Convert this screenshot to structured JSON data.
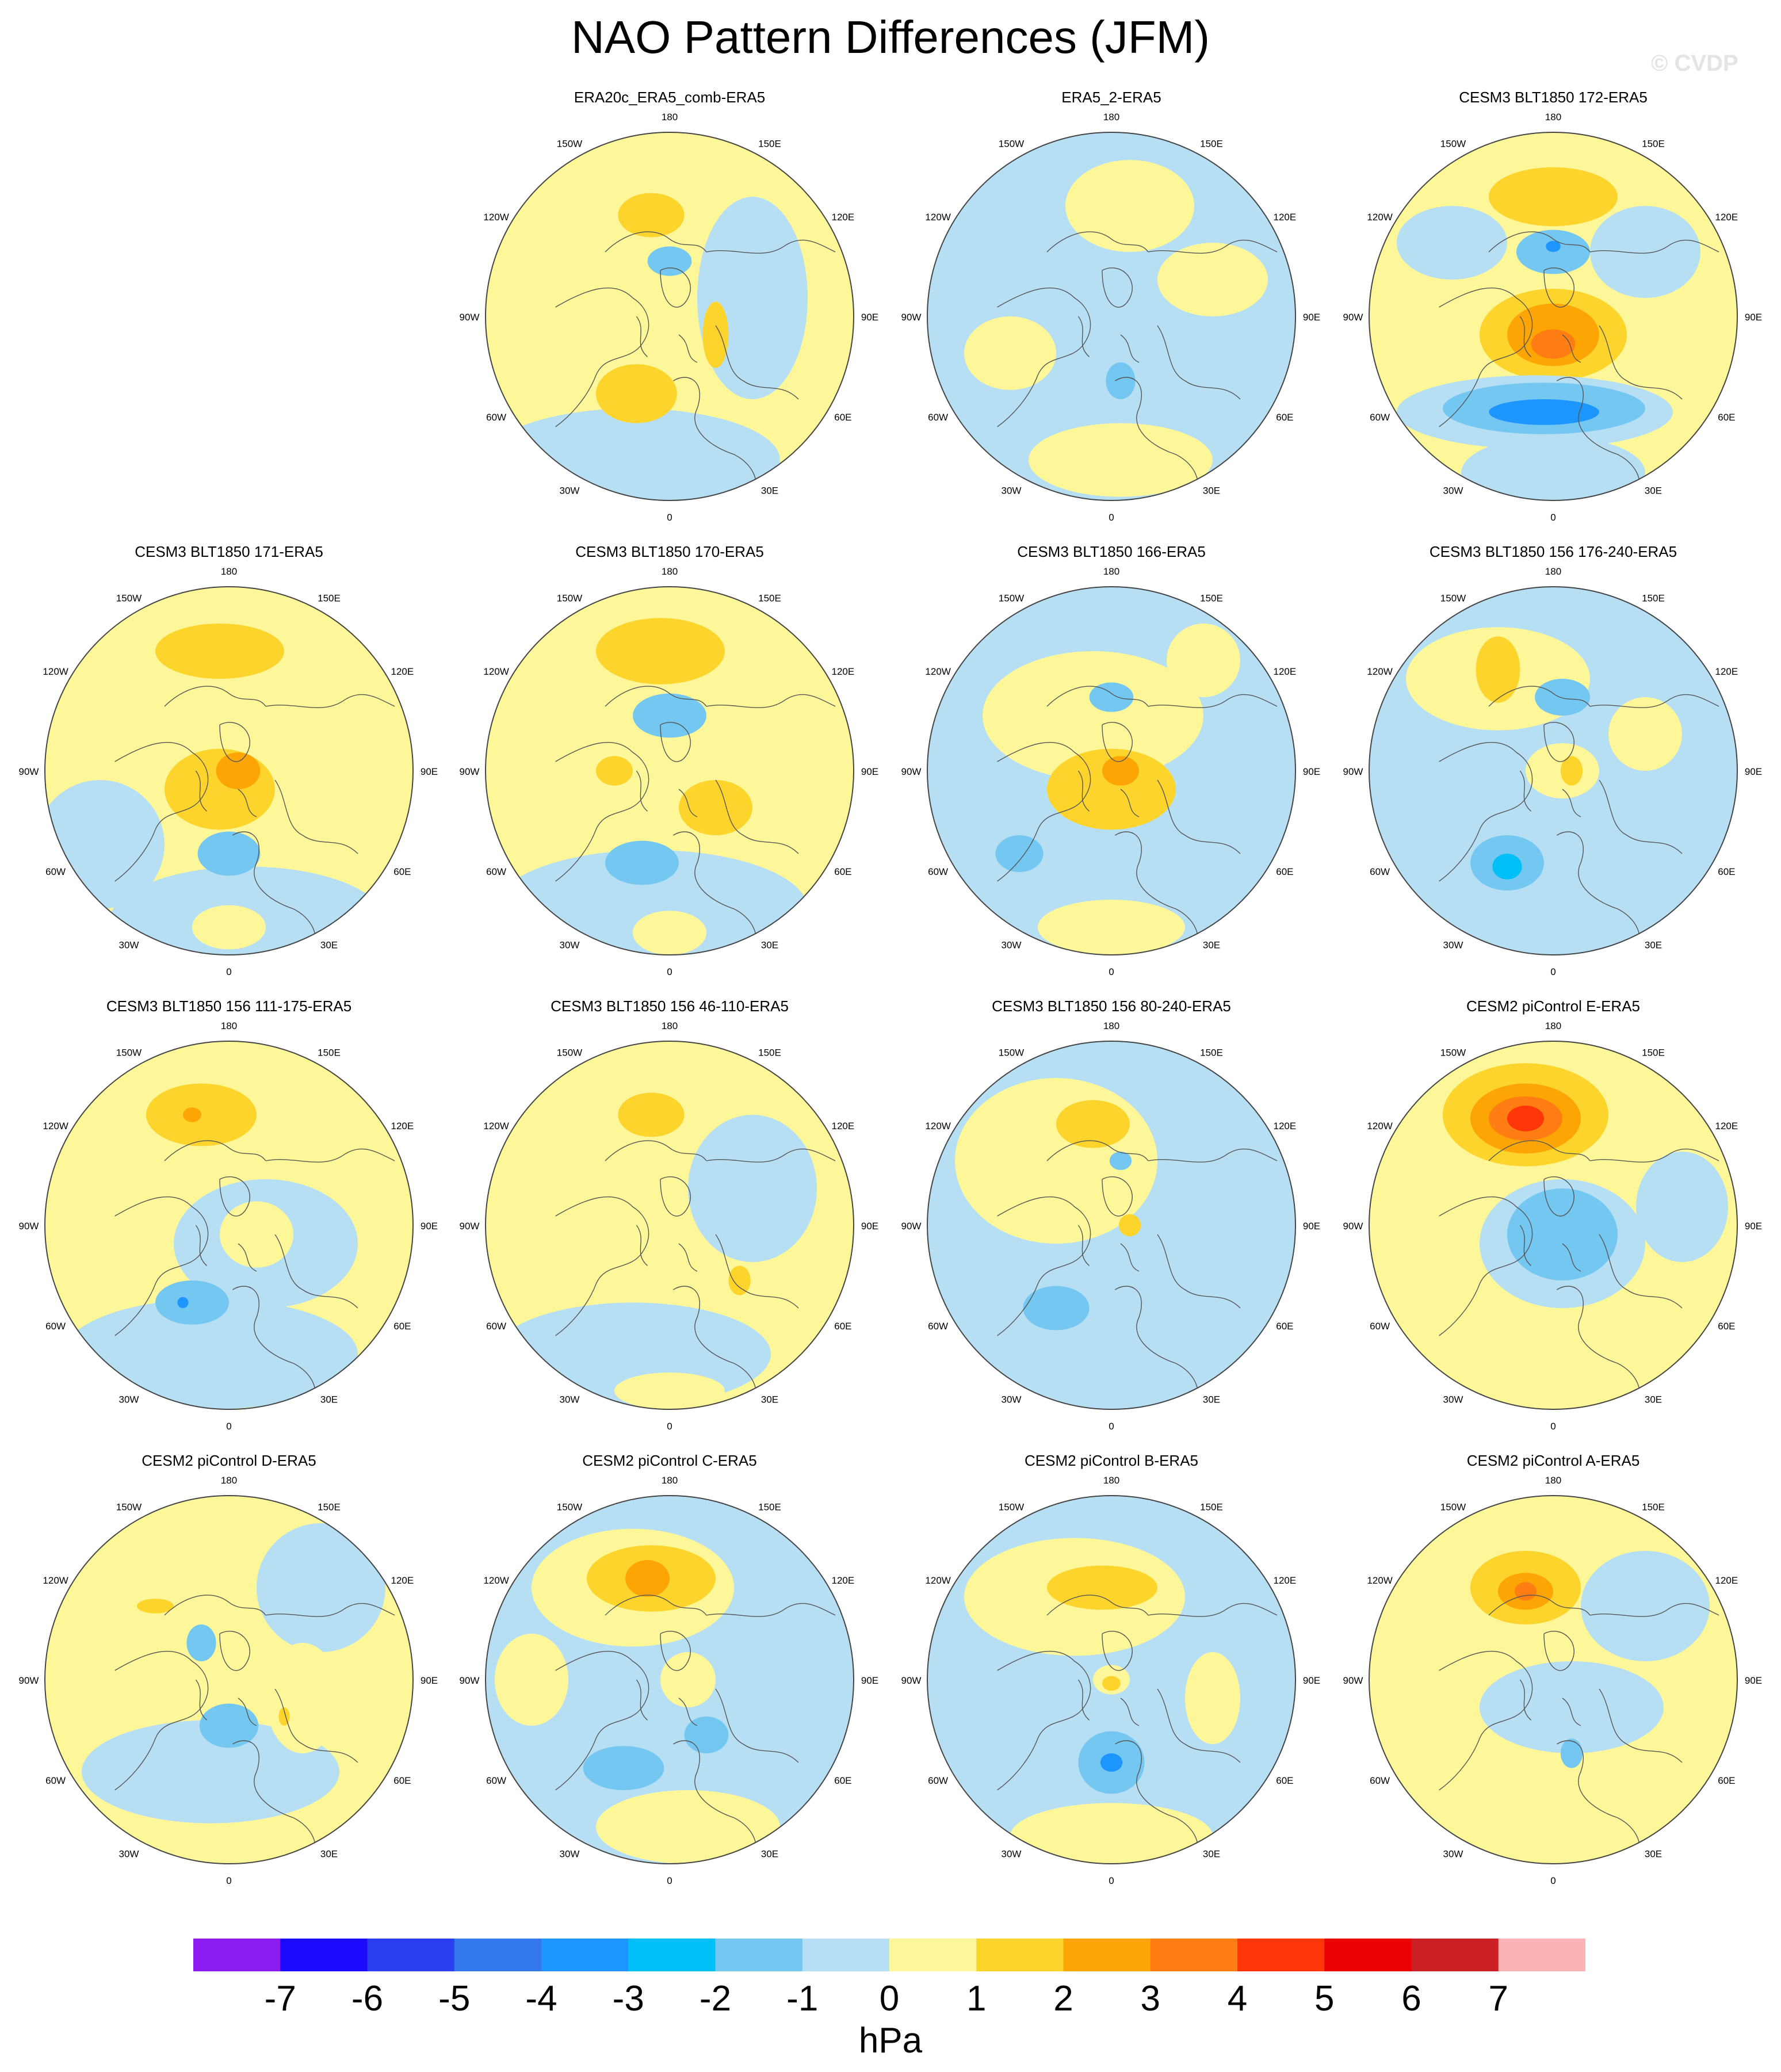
{
  "title": "NAO Pattern Differences (JFM)",
  "watermark": "© CVDP",
  "units": "hPa",
  "lon_labels": [
    "180",
    "150E",
    "120E",
    "90E",
    "60E",
    "30E",
    "0",
    "30W",
    "60W",
    "90W",
    "120W",
    "150W"
  ],
  "colorbar": {
    "ticks": [
      "-7",
      "-6",
      "-5",
      "-4",
      "-3",
      "-2",
      "-1",
      "0",
      "1",
      "2",
      "3",
      "4",
      "5",
      "6",
      "7"
    ],
    "colors": [
      "#8c1cf0",
      "#1c0aff",
      "#2a3ff0",
      "#3478ee",
      "#1e96ff",
      "#00c0f7",
      "#74c7f1",
      "#b7dff4",
      "#fdf799",
      "#fdd42b",
      "#fda505",
      "#ff7d12",
      "#ff3708",
      "#ea0000",
      "#cb2026",
      "#fbb3b6"
    ]
  },
  "colors": {
    "ocean_neutral": "#b7dff4",
    "land_neutral": "#fdf799",
    "coast": "#555555",
    "frame": "#444444"
  },
  "panels": [
    {
      "title": "ERA20c_ERA5_comb-ERA5",
      "base": "#fdf799",
      "blobs": [
        {
          "dx": -0.1,
          "dy": -0.55,
          "rx": 0.18,
          "ry": 0.12,
          "c": "#fdd42b"
        },
        {
          "dx": 0.45,
          "dy": -0.1,
          "rx": 0.3,
          "ry": 0.55,
          "c": "#b7dff4"
        },
        {
          "dx": -0.2,
          "dy": 0.78,
          "rx": 0.8,
          "ry": 0.28,
          "c": "#b7dff4"
        },
        {
          "dx": -0.18,
          "dy": 0.42,
          "rx": 0.22,
          "ry": 0.16,
          "c": "#fdd42b"
        },
        {
          "dx": 0.25,
          "dy": 0.1,
          "rx": 0.07,
          "ry": 0.18,
          "c": "#fdd42b"
        },
        {
          "dx": 0.0,
          "dy": -0.3,
          "rx": 0.12,
          "ry": 0.08,
          "c": "#74c7f1"
        }
      ]
    },
    {
      "title": "ERA5_2-ERA5",
      "base": "#b7dff4",
      "blobs": [
        {
          "dx": 0.1,
          "dy": -0.6,
          "rx": 0.35,
          "ry": 0.25,
          "c": "#fdf799"
        },
        {
          "dx": 0.55,
          "dy": -0.2,
          "rx": 0.3,
          "ry": 0.2,
          "c": "#fdf799"
        },
        {
          "dx": -0.55,
          "dy": 0.2,
          "rx": 0.25,
          "ry": 0.2,
          "c": "#fdf799"
        },
        {
          "dx": 0.05,
          "dy": 0.78,
          "rx": 0.5,
          "ry": 0.2,
          "c": "#fdf799"
        },
        {
          "dx": 0.05,
          "dy": 0.35,
          "rx": 0.08,
          "ry": 0.1,
          "c": "#74c7f1"
        }
      ]
    },
    {
      "title": "CESM3 BLT1850 172-ERA5",
      "base": "#fdf799",
      "blobs": [
        {
          "dx": 0.0,
          "dy": -0.65,
          "rx": 0.35,
          "ry": 0.16,
          "c": "#fdd42b"
        },
        {
          "dx": 0.0,
          "dy": -0.35,
          "rx": 0.2,
          "ry": 0.12,
          "c": "#74c7f1"
        },
        {
          "dx": 0.0,
          "dy": -0.38,
          "rx": 0.04,
          "ry": 0.03,
          "c": "#1e96ff"
        },
        {
          "dx": -0.55,
          "dy": -0.4,
          "rx": 0.3,
          "ry": 0.2,
          "c": "#b7dff4"
        },
        {
          "dx": 0.5,
          "dy": -0.35,
          "rx": 0.3,
          "ry": 0.25,
          "c": "#b7dff4"
        },
        {
          "dx": 0.0,
          "dy": 0.1,
          "rx": 0.4,
          "ry": 0.25,
          "c": "#fdd42b"
        },
        {
          "dx": 0.0,
          "dy": 0.1,
          "rx": 0.25,
          "ry": 0.17,
          "c": "#fda505"
        },
        {
          "dx": 0.0,
          "dy": 0.15,
          "rx": 0.12,
          "ry": 0.08,
          "c": "#ff7d12"
        },
        {
          "dx": -0.1,
          "dy": 0.52,
          "rx": 0.75,
          "ry": 0.2,
          "c": "#b7dff4"
        },
        {
          "dx": -0.05,
          "dy": 0.5,
          "rx": 0.55,
          "ry": 0.14,
          "c": "#74c7f1"
        },
        {
          "dx": -0.05,
          "dy": 0.52,
          "rx": 0.3,
          "ry": 0.07,
          "c": "#1e96ff"
        },
        {
          "dx": 0.0,
          "dy": 0.85,
          "rx": 0.5,
          "ry": 0.2,
          "c": "#b7dff4"
        }
      ]
    },
    {
      "title": "CESM3 BLT1850 171-ERA5",
      "base": "#fdf799",
      "blobs": [
        {
          "dx": -0.05,
          "dy": -0.65,
          "rx": 0.35,
          "ry": 0.15,
          "c": "#fdd42b"
        },
        {
          "dx": -0.05,
          "dy": 0.1,
          "rx": 0.3,
          "ry": 0.22,
          "c": "#fdd42b"
        },
        {
          "dx": 0.05,
          "dy": 0.0,
          "rx": 0.12,
          "ry": 0.1,
          "c": "#fda505"
        },
        {
          "dx": 0.1,
          "dy": 0.82,
          "rx": 0.75,
          "ry": 0.3,
          "c": "#b7dff4"
        },
        {
          "dx": -0.7,
          "dy": 0.4,
          "rx": 0.35,
          "ry": 0.35,
          "c": "#b7dff4"
        },
        {
          "dx": 0.0,
          "dy": 0.45,
          "rx": 0.17,
          "ry": 0.12,
          "c": "#74c7f1"
        },
        {
          "dx": 0.0,
          "dy": 0.85,
          "rx": 0.2,
          "ry": 0.12,
          "c": "#fdf799"
        }
      ]
    },
    {
      "title": "CESM3 BLT1850 170-ERA5",
      "base": "#fdf799",
      "blobs": [
        {
          "dx": -0.05,
          "dy": -0.65,
          "rx": 0.35,
          "ry": 0.18,
          "c": "#fdd42b"
        },
        {
          "dx": 0.0,
          "dy": -0.3,
          "rx": 0.2,
          "ry": 0.12,
          "c": "#74c7f1"
        },
        {
          "dx": -0.3,
          "dy": 0.0,
          "rx": 0.1,
          "ry": 0.08,
          "c": "#fdd42b"
        },
        {
          "dx": 0.25,
          "dy": 0.2,
          "rx": 0.2,
          "ry": 0.15,
          "c": "#fdd42b"
        },
        {
          "dx": -0.1,
          "dy": 0.75,
          "rx": 0.85,
          "ry": 0.32,
          "c": "#b7dff4"
        },
        {
          "dx": -0.15,
          "dy": 0.5,
          "rx": 0.2,
          "ry": 0.12,
          "c": "#74c7f1"
        },
        {
          "dx": 0.0,
          "dy": 0.88,
          "rx": 0.2,
          "ry": 0.12,
          "c": "#fdf799"
        }
      ]
    },
    {
      "title": "CESM3 BLT1850 166-ERA5",
      "base": "#b7dff4",
      "blobs": [
        {
          "dx": -0.1,
          "dy": -0.3,
          "rx": 0.6,
          "ry": 0.35,
          "c": "#fdf799"
        },
        {
          "dx": 0.0,
          "dy": 0.1,
          "rx": 0.35,
          "ry": 0.22,
          "c": "#fdd42b"
        },
        {
          "dx": 0.05,
          "dy": 0.0,
          "rx": 0.1,
          "ry": 0.08,
          "c": "#fda505"
        },
        {
          "dx": 0.0,
          "dy": -0.4,
          "rx": 0.12,
          "ry": 0.08,
          "c": "#74c7f1"
        },
        {
          "dx": -0.5,
          "dy": 0.45,
          "rx": 0.13,
          "ry": 0.1,
          "c": "#74c7f1"
        },
        {
          "dx": 0.0,
          "dy": 0.85,
          "rx": 0.4,
          "ry": 0.15,
          "c": "#fdf799"
        },
        {
          "dx": 0.5,
          "dy": -0.6,
          "rx": 0.2,
          "ry": 0.2,
          "c": "#fdf799"
        }
      ]
    },
    {
      "title": "CESM3 BLT1850 156 176-240-ERA5",
      "base": "#b7dff4",
      "blobs": [
        {
          "dx": -0.3,
          "dy": -0.5,
          "rx": 0.5,
          "ry": 0.28,
          "c": "#fdf799"
        },
        {
          "dx": -0.3,
          "dy": -0.55,
          "rx": 0.12,
          "ry": 0.18,
          "c": "#fdd42b"
        },
        {
          "dx": 0.05,
          "dy": -0.4,
          "rx": 0.15,
          "ry": 0.1,
          "c": "#74c7f1"
        },
        {
          "dx": 0.05,
          "dy": 0.0,
          "rx": 0.2,
          "ry": 0.15,
          "c": "#fdf799"
        },
        {
          "dx": 0.1,
          "dy": 0.0,
          "rx": 0.06,
          "ry": 0.08,
          "c": "#fdd42b"
        },
        {
          "dx": -0.25,
          "dy": 0.5,
          "rx": 0.2,
          "ry": 0.15,
          "c": "#74c7f1"
        },
        {
          "dx": -0.25,
          "dy": 0.52,
          "rx": 0.08,
          "ry": 0.07,
          "c": "#00c0f7"
        },
        {
          "dx": 0.5,
          "dy": -0.2,
          "rx": 0.2,
          "ry": 0.2,
          "c": "#fdf799"
        }
      ]
    },
    {
      "title": "CESM3 BLT1850 156 111-175-ERA5",
      "base": "#fdf799",
      "blobs": [
        {
          "dx": -0.15,
          "dy": -0.6,
          "rx": 0.3,
          "ry": 0.17,
          "c": "#fdd42b"
        },
        {
          "dx": -0.2,
          "dy": -0.6,
          "rx": 0.05,
          "ry": 0.04,
          "c": "#fda505"
        },
        {
          "dx": 0.2,
          "dy": 0.1,
          "rx": 0.5,
          "ry": 0.35,
          "c": "#b7dff4"
        },
        {
          "dx": -0.1,
          "dy": 0.7,
          "rx": 0.8,
          "ry": 0.3,
          "c": "#b7dff4"
        },
        {
          "dx": -0.2,
          "dy": 0.42,
          "rx": 0.2,
          "ry": 0.12,
          "c": "#74c7f1"
        },
        {
          "dx": -0.25,
          "dy": 0.42,
          "rx": 0.03,
          "ry": 0.03,
          "c": "#1e96ff"
        },
        {
          "dx": 0.15,
          "dy": 0.05,
          "rx": 0.2,
          "ry": 0.18,
          "c": "#fdf799"
        }
      ]
    },
    {
      "title": "CESM3 BLT1850 156 46-110-ERA5",
      "base": "#fdf799",
      "blobs": [
        {
          "dx": -0.1,
          "dy": -0.6,
          "rx": 0.18,
          "ry": 0.12,
          "c": "#fdd42b"
        },
        {
          "dx": 0.45,
          "dy": -0.2,
          "rx": 0.35,
          "ry": 0.4,
          "c": "#b7dff4"
        },
        {
          "dx": -0.2,
          "dy": 0.7,
          "rx": 0.75,
          "ry": 0.28,
          "c": "#b7dff4"
        },
        {
          "dx": 0.38,
          "dy": 0.3,
          "rx": 0.06,
          "ry": 0.08,
          "c": "#fdd42b"
        },
        {
          "dx": 0.0,
          "dy": 0.9,
          "rx": 0.3,
          "ry": 0.1,
          "c": "#fdf799"
        }
      ]
    },
    {
      "title": "CESM3 BLT1850 156 80-240-ERA5",
      "base": "#b7dff4",
      "blobs": [
        {
          "dx": -0.3,
          "dy": -0.35,
          "rx": 0.55,
          "ry": 0.45,
          "c": "#fdf799"
        },
        {
          "dx": -0.1,
          "dy": -0.55,
          "rx": 0.2,
          "ry": 0.13,
          "c": "#fdd42b"
        },
        {
          "dx": 0.05,
          "dy": -0.35,
          "rx": 0.06,
          "ry": 0.05,
          "c": "#74c7f1"
        },
        {
          "dx": -0.3,
          "dy": 0.45,
          "rx": 0.18,
          "ry": 0.12,
          "c": "#74c7f1"
        },
        {
          "dx": 0.1,
          "dy": 0.0,
          "rx": 0.06,
          "ry": 0.06,
          "c": "#fdd42b"
        }
      ]
    },
    {
      "title": "CESM2 piControl E-ERA5",
      "base": "#fdf799",
      "blobs": [
        {
          "dx": -0.15,
          "dy": -0.6,
          "rx": 0.45,
          "ry": 0.28,
          "c": "#fdd42b"
        },
        {
          "dx": -0.15,
          "dy": -0.58,
          "rx": 0.3,
          "ry": 0.19,
          "c": "#fda505"
        },
        {
          "dx": -0.15,
          "dy": -0.58,
          "rx": 0.2,
          "ry": 0.12,
          "c": "#ff7d12"
        },
        {
          "dx": -0.15,
          "dy": -0.58,
          "rx": 0.1,
          "ry": 0.07,
          "c": "#ff3708"
        },
        {
          "dx": 0.05,
          "dy": 0.1,
          "rx": 0.45,
          "ry": 0.35,
          "c": "#b7dff4"
        },
        {
          "dx": 0.05,
          "dy": 0.05,
          "rx": 0.3,
          "ry": 0.25,
          "c": "#74c7f1"
        },
        {
          "dx": 0.7,
          "dy": -0.1,
          "rx": 0.25,
          "ry": 0.3,
          "c": "#b7dff4"
        },
        {
          "dx": 0.0,
          "dy": 0.85,
          "rx": 0.6,
          "ry": 0.2,
          "c": "#fdf799"
        }
      ]
    },
    {
      "title": "CESM2 piControl D-ERA5",
      "base": "#fdf799",
      "blobs": [
        {
          "dx": -0.4,
          "dy": -0.4,
          "rx": 0.1,
          "ry": 0.04,
          "c": "#fdd42b"
        },
        {
          "dx": 0.5,
          "dy": -0.5,
          "rx": 0.35,
          "ry": 0.35,
          "c": "#b7dff4"
        },
        {
          "dx": -0.1,
          "dy": 0.5,
          "rx": 0.7,
          "ry": 0.28,
          "c": "#b7dff4"
        },
        {
          "dx": 0.0,
          "dy": 0.25,
          "rx": 0.16,
          "ry": 0.12,
          "c": "#74c7f1"
        },
        {
          "dx": -0.15,
          "dy": -0.2,
          "rx": 0.08,
          "ry": 0.1,
          "c": "#74c7f1"
        },
        {
          "dx": 0.4,
          "dy": 0.1,
          "rx": 0.2,
          "ry": 0.3,
          "c": "#fdf799"
        },
        {
          "dx": 0.3,
          "dy": 0.2,
          "rx": 0.03,
          "ry": 0.05,
          "c": "#fdd42b"
        }
      ]
    },
    {
      "title": "CESM2 piControl C-ERA5",
      "base": "#b7dff4",
      "blobs": [
        {
          "dx": -0.2,
          "dy": -0.5,
          "rx": 0.55,
          "ry": 0.32,
          "c": "#fdf799"
        },
        {
          "dx": -0.1,
          "dy": -0.55,
          "rx": 0.35,
          "ry": 0.18,
          "c": "#fdd42b"
        },
        {
          "dx": -0.12,
          "dy": -0.55,
          "rx": 0.12,
          "ry": 0.1,
          "c": "#fda505"
        },
        {
          "dx": -0.75,
          "dy": 0.0,
          "rx": 0.2,
          "ry": 0.25,
          "c": "#fdf799"
        },
        {
          "dx": 0.1,
          "dy": 0.0,
          "rx": 0.15,
          "ry": 0.15,
          "c": "#fdf799"
        },
        {
          "dx": 0.1,
          "dy": 0.8,
          "rx": 0.5,
          "ry": 0.2,
          "c": "#fdf799"
        },
        {
          "dx": -0.25,
          "dy": 0.48,
          "rx": 0.22,
          "ry": 0.12,
          "c": "#74c7f1"
        },
        {
          "dx": 0.2,
          "dy": 0.3,
          "rx": 0.12,
          "ry": 0.1,
          "c": "#74c7f1"
        }
      ]
    },
    {
      "title": "CESM2 piControl B-ERA5",
      "base": "#b7dff4",
      "blobs": [
        {
          "dx": -0.2,
          "dy": -0.45,
          "rx": 0.6,
          "ry": 0.32,
          "c": "#fdf799"
        },
        {
          "dx": -0.05,
          "dy": -0.5,
          "rx": 0.3,
          "ry": 0.12,
          "c": "#fdd42b"
        },
        {
          "dx": 0.0,
          "dy": 0.0,
          "rx": 0.1,
          "ry": 0.08,
          "c": "#fdf799"
        },
        {
          "dx": 0.0,
          "dy": 0.02,
          "rx": 0.05,
          "ry": 0.04,
          "c": "#fdd42b"
        },
        {
          "dx": 0.0,
          "dy": 0.45,
          "rx": 0.18,
          "ry": 0.17,
          "c": "#74c7f1"
        },
        {
          "dx": 0.0,
          "dy": 0.45,
          "rx": 0.06,
          "ry": 0.05,
          "c": "#1e96ff"
        },
        {
          "dx": 0.0,
          "dy": 0.85,
          "rx": 0.55,
          "ry": 0.18,
          "c": "#fdf799"
        },
        {
          "dx": 0.55,
          "dy": 0.1,
          "rx": 0.15,
          "ry": 0.25,
          "c": "#fdf799"
        }
      ]
    },
    {
      "title": "CESM2 piControl A-ERA5",
      "base": "#fdf799",
      "blobs": [
        {
          "dx": -0.15,
          "dy": -0.5,
          "rx": 0.3,
          "ry": 0.2,
          "c": "#fdd42b"
        },
        {
          "dx": -0.15,
          "dy": -0.48,
          "rx": 0.15,
          "ry": 0.1,
          "c": "#fda505"
        },
        {
          "dx": -0.15,
          "dy": -0.48,
          "rx": 0.06,
          "ry": 0.05,
          "c": "#ff7d12"
        },
        {
          "dx": 0.5,
          "dy": -0.4,
          "rx": 0.35,
          "ry": 0.3,
          "c": "#b7dff4"
        },
        {
          "dx": 0.1,
          "dy": 0.15,
          "rx": 0.5,
          "ry": 0.25,
          "c": "#b7dff4"
        },
        {
          "dx": 0.1,
          "dy": 0.4,
          "rx": 0.06,
          "ry": 0.08,
          "c": "#74c7f1"
        },
        {
          "dx": 0.0,
          "dy": 0.8,
          "rx": 0.5,
          "ry": 0.2,
          "c": "#fdf799"
        }
      ]
    }
  ]
}
